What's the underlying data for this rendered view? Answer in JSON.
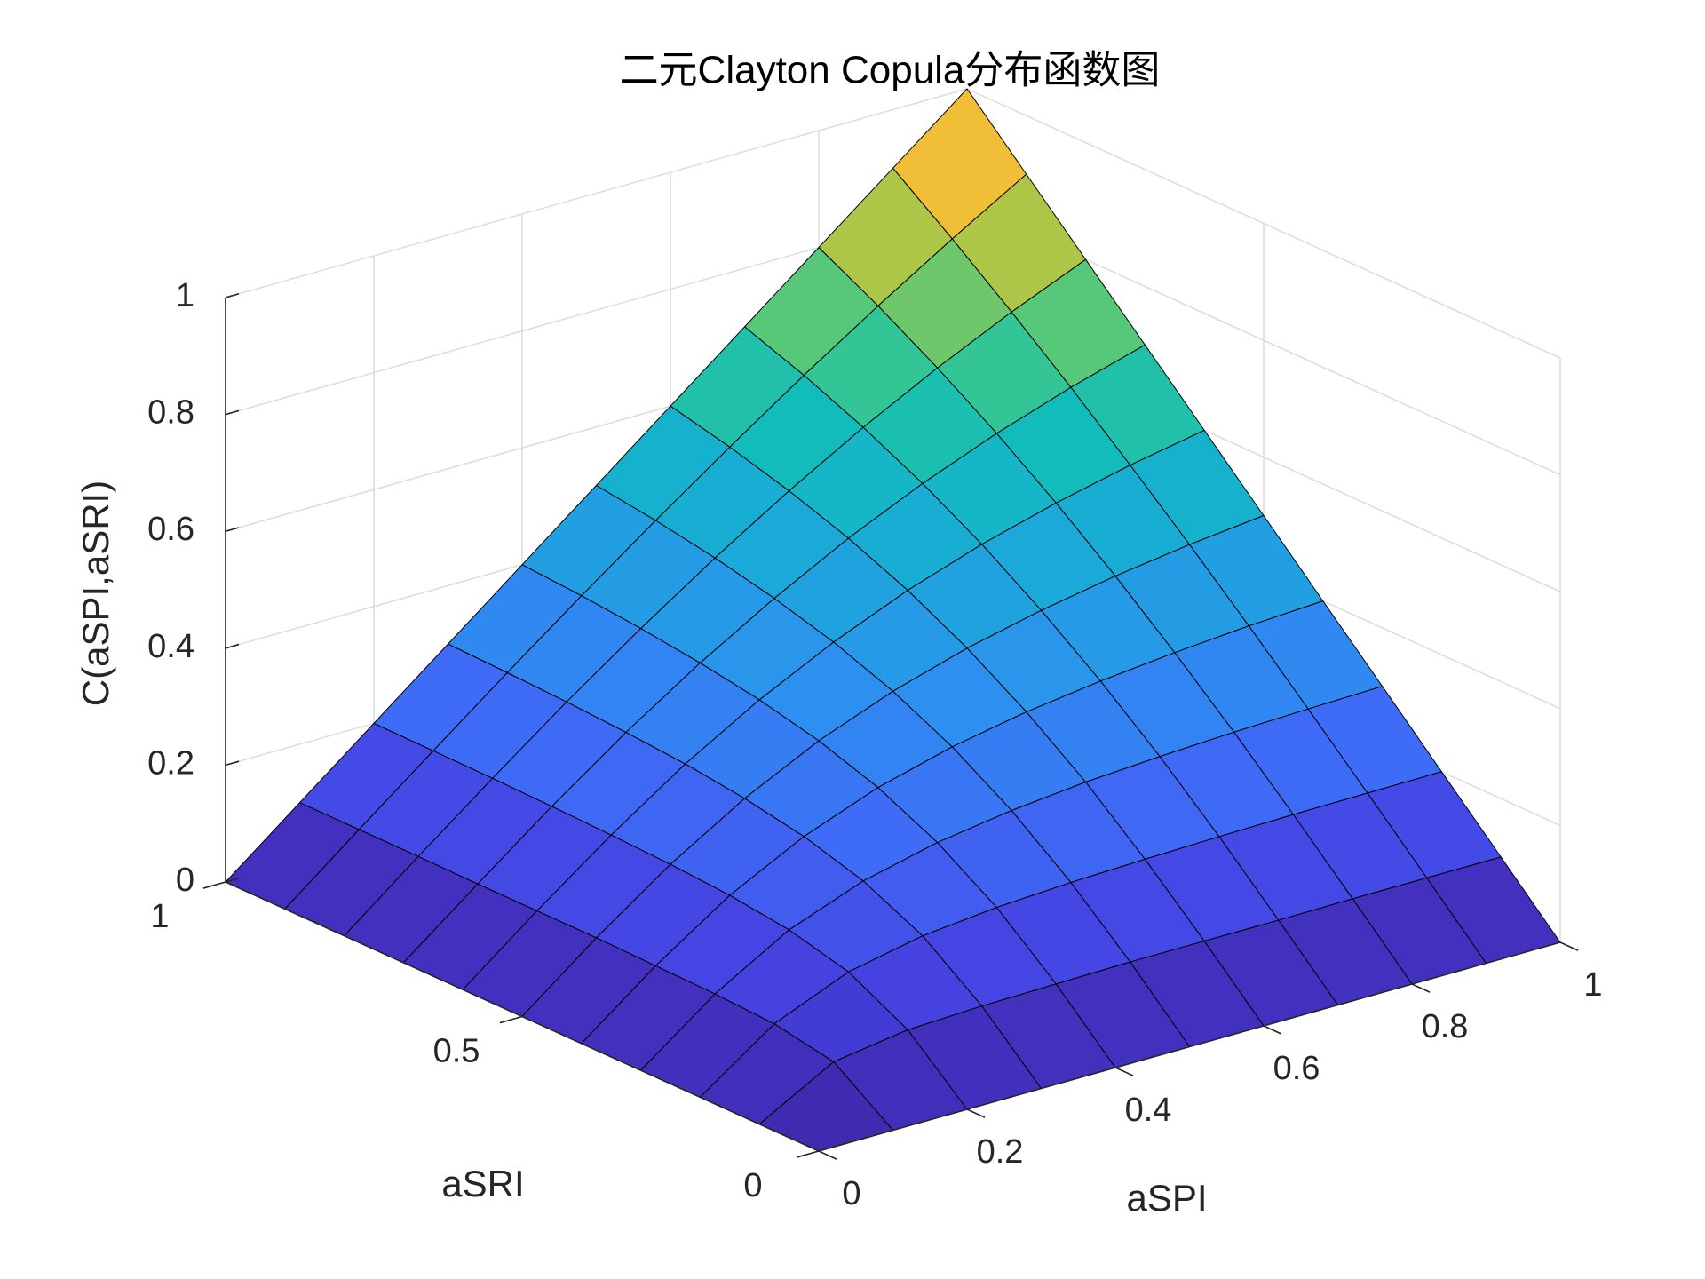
{
  "chart_data": {
    "type": "surface",
    "title": "二元Clayton Copula分布函数图",
    "xlabel": "aSPI",
    "ylabel": "aSRI",
    "zlabel": "C(aSPI,aSRI)",
    "x": [
      0,
      0.1,
      0.2,
      0.3,
      0.4,
      0.5,
      0.6,
      0.7,
      0.8,
      0.9,
      1
    ],
    "y": [
      0,
      0.1,
      0.2,
      0.3,
      0.4,
      0.5,
      0.6,
      0.7,
      0.8,
      0.9,
      1
    ],
    "z": [
      [
        0,
        0,
        0,
        0,
        0,
        0,
        0,
        0,
        0,
        0,
        0
      ],
      [
        0,
        0.071,
        0.09,
        0.095,
        0.097,
        0.099,
        0.099,
        0.099,
        0.1,
        0.1,
        0.1
      ],
      [
        0,
        0.09,
        0.143,
        0.169,
        0.182,
        0.189,
        0.193,
        0.196,
        0.198,
        0.199,
        0.2
      ],
      [
        0,
        0.095,
        0.169,
        0.217,
        0.247,
        0.266,
        0.279,
        0.287,
        0.293,
        0.297,
        0.3
      ],
      [
        0,
        0.097,
        0.182,
        0.247,
        0.295,
        0.329,
        0.353,
        0.37,
        0.383,
        0.393,
        0.4
      ],
      [
        0,
        0.099,
        0.189,
        0.266,
        0.329,
        0.378,
        0.416,
        0.445,
        0.468,
        0.486,
        0.5
      ],
      [
        0,
        0.099,
        0.193,
        0.279,
        0.353,
        0.416,
        0.469,
        0.512,
        0.547,
        0.576,
        0.6
      ],
      [
        0,
        0.099,
        0.196,
        0.287,
        0.37,
        0.445,
        0.512,
        0.57,
        0.62,
        0.663,
        0.7
      ],
      [
        0,
        0.1,
        0.198,
        0.293,
        0.383,
        0.468,
        0.547,
        0.62,
        0.686,
        0.746,
        0.8
      ],
      [
        0,
        0.1,
        0.199,
        0.297,
        0.393,
        0.486,
        0.576,
        0.663,
        0.746,
        0.825,
        0.9
      ],
      [
        0,
        0.1,
        0.2,
        0.3,
        0.4,
        0.5,
        0.6,
        0.7,
        0.8,
        0.9,
        1
      ]
    ],
    "xlim": [
      0,
      1
    ],
    "ylim": [
      0,
      1
    ],
    "zlim": [
      0,
      1
    ],
    "xticks": [
      0,
      0.2,
      0.4,
      0.6,
      0.8,
      1
    ],
    "yticks": [
      0,
      0.5,
      1
    ],
    "zticks": [
      0,
      0.2,
      0.4,
      0.6,
      0.8,
      1
    ],
    "grid": true,
    "colormap": "parula",
    "edgecolor": "#000000"
  }
}
